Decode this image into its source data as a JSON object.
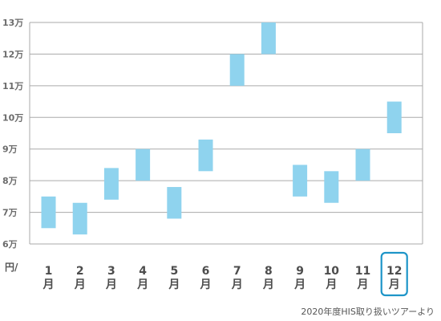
{
  "chart_data": {
    "type": "bar",
    "subtype": "floating-range",
    "categories": [
      "1\n月",
      "2\n月",
      "3\n月",
      "4\n月",
      "5\n月",
      "6\n月",
      "7\n月",
      "8\n月",
      "9\n月",
      "10\n月",
      "11\n月",
      "12\n月"
    ],
    "series": [
      {
        "low": [
          65000,
          63000,
          74000,
          80000,
          68000,
          83000,
          110000,
          120000,
          75000,
          73000,
          80000,
          95000
        ],
        "high": [
          75000,
          73000,
          84000,
          90000,
          78000,
          93000,
          120000,
          130000,
          85000,
          83000,
          90000,
          105000
        ]
      }
    ],
    "yticks": [
      "6万",
      "7万",
      "8万",
      "9万",
      "10万",
      "11万",
      "12万",
      "13万"
    ],
    "ylim": [
      60000,
      130000
    ],
    "unit_label": "円/",
    "highlight_category": "12\n月",
    "grid": true,
    "legend": "none",
    "bar_color": "#8fd3ee",
    "grid_color": "#aaaaaa",
    "highlight_color": "#1e95c8"
  },
  "source_note": "2020年度HIS取り扱いツアーより"
}
